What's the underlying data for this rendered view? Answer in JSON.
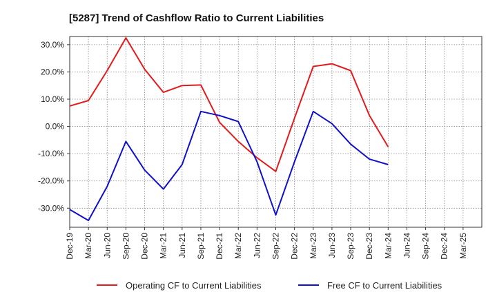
{
  "chart_data": {
    "type": "line",
    "title": "[5287]  Trend of Cashflow Ratio to Current Liabilities",
    "xlabel": "",
    "ylabel": "",
    "categories": [
      "Dec-19",
      "Mar-20",
      "Jun-20",
      "Sep-20",
      "Dec-20",
      "Mar-21",
      "Jun-21",
      "Sep-21",
      "Dec-21",
      "Mar-22",
      "Jun-22",
      "Sep-22",
      "Dec-22",
      "Mar-23",
      "Jun-23",
      "Sep-23",
      "Dec-23",
      "Mar-24",
      "Jun-24",
      "Sep-24",
      "Dec-24",
      "Mar-25"
    ],
    "ylim": [
      -37,
      33
    ],
    "yticks": [
      30,
      20,
      10,
      0,
      -10,
      -20,
      -30
    ],
    "ytick_labels": [
      "30.0%",
      "20.0%",
      "10.0%",
      "0.0%",
      "-10.0%",
      "-20.0%",
      "-30.0%"
    ],
    "grid": true,
    "legend_position": "bottom",
    "series": [
      {
        "name": "Operating CF to Current Liabilities",
        "color": "#e31a1c",
        "values": [
          7.5,
          9.5,
          20.5,
          32.5,
          21.0,
          12.5,
          15.0,
          15.2,
          1.5,
          -5.5,
          -11.5,
          -16.5,
          3.0,
          22.0,
          23.0,
          20.5,
          4.0,
          -7.5,
          null,
          null,
          null,
          null
        ]
      },
      {
        "name": "Free CF to Current Liabilities",
        "color": "#1010cc",
        "values": [
          -30.5,
          -34.5,
          -22.0,
          -5.5,
          -16.0,
          -23.0,
          -14.0,
          5.5,
          4.0,
          1.8,
          -13.0,
          -32.5,
          -13.0,
          5.5,
          1.0,
          -6.5,
          -12.0,
          -14.0,
          null,
          null,
          null,
          null
        ]
      }
    ]
  }
}
